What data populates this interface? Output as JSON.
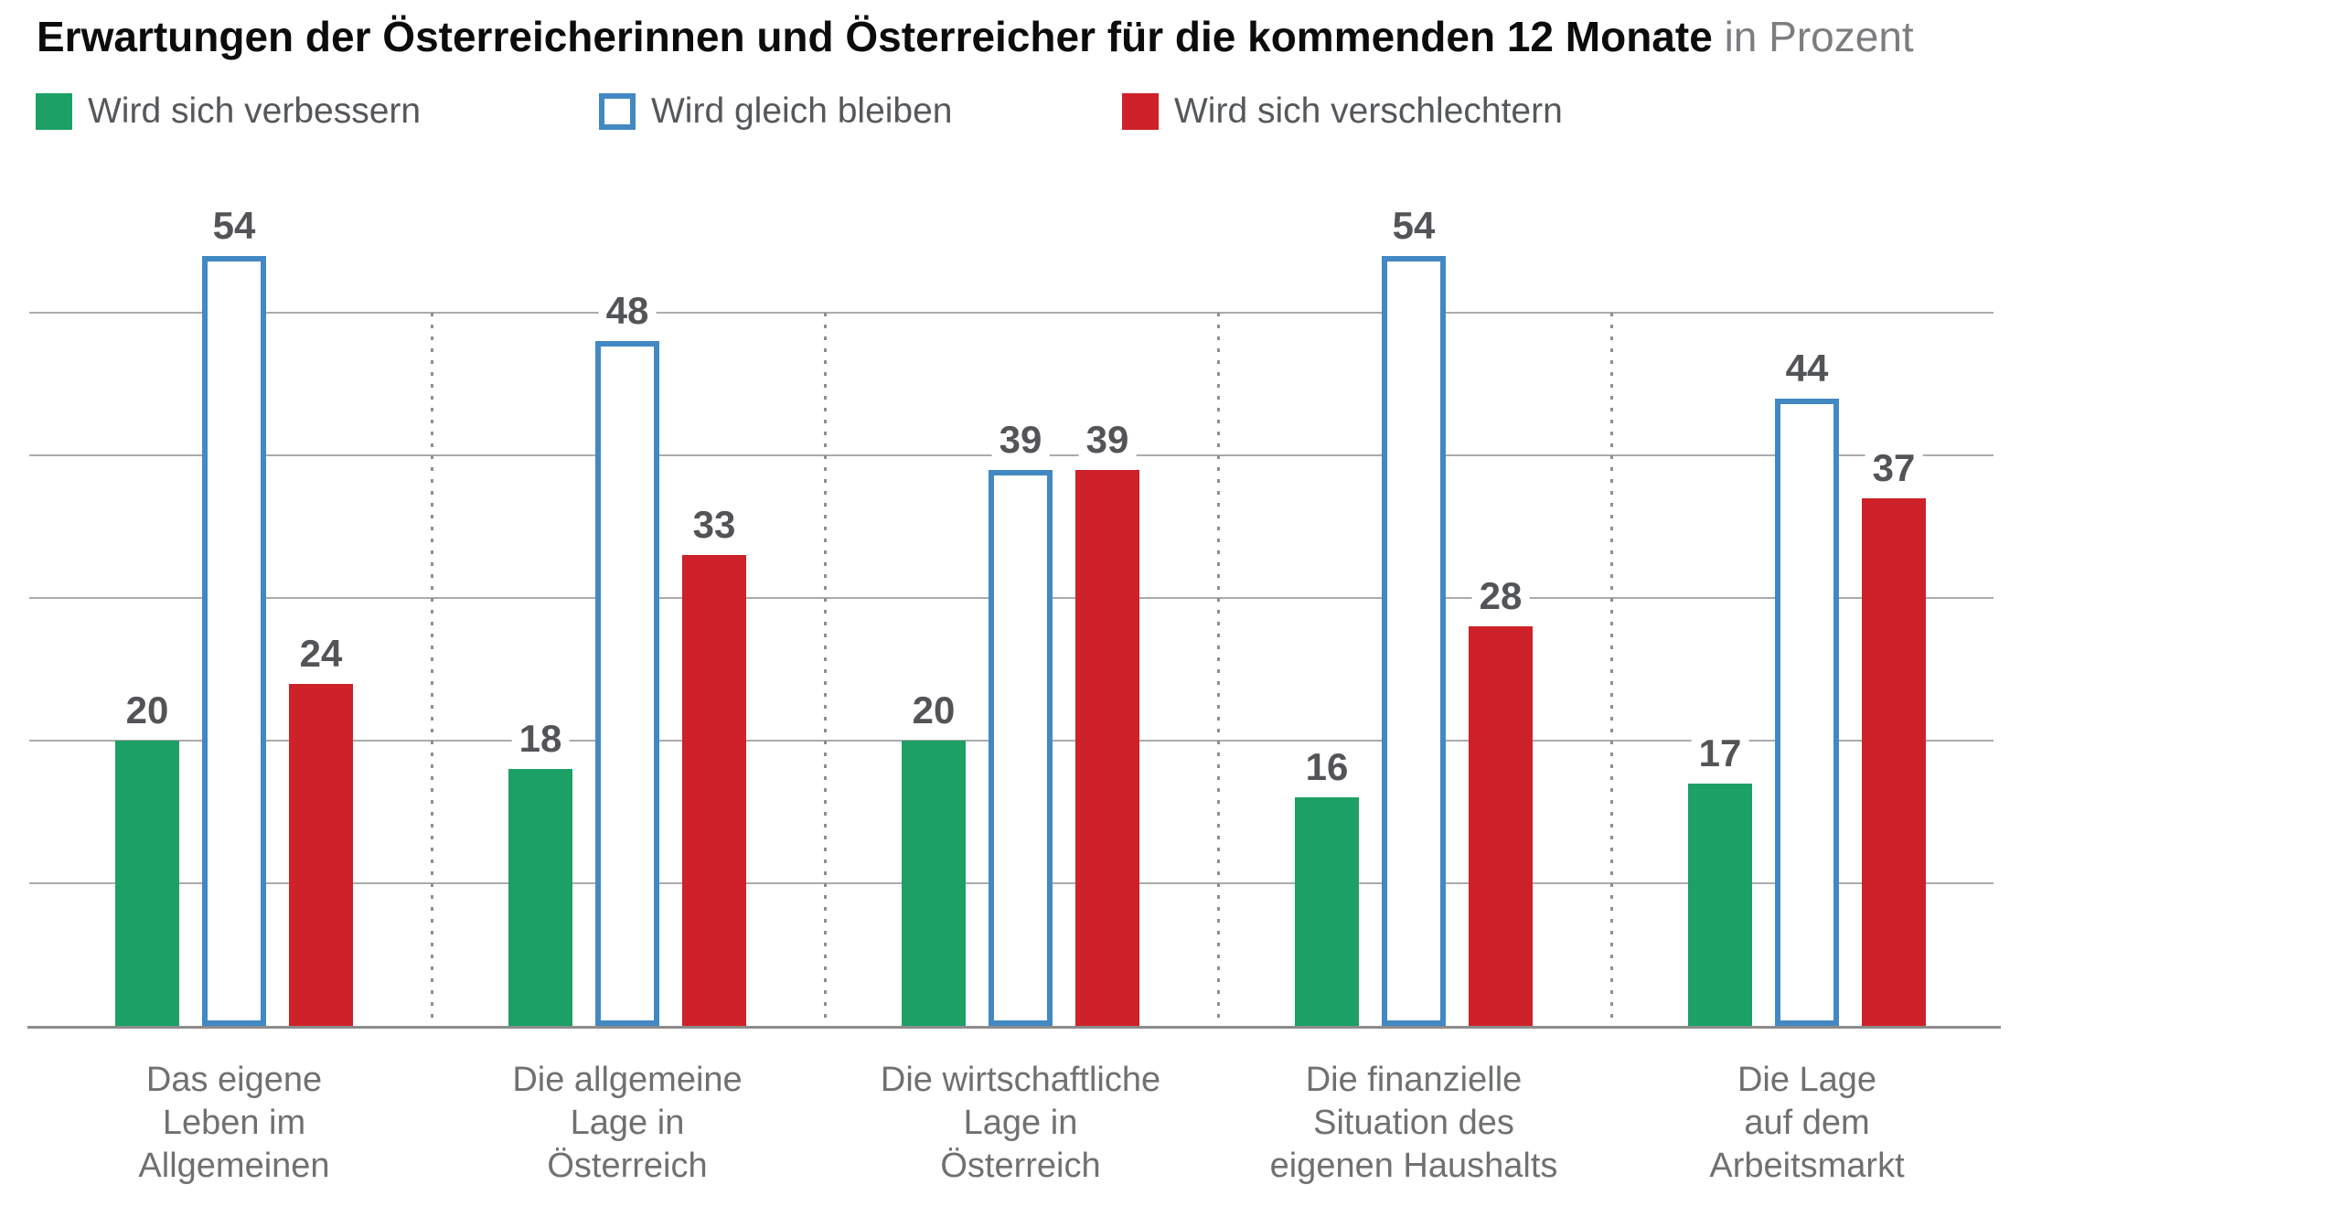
{
  "title": {
    "main": "Erwartungen der Österreicherinnen und Österreicher für die kommenden 12 Monate",
    "suffix": "in Prozent"
  },
  "legend": [
    {
      "label": "Wird sich verbessern",
      "color": "#1da065",
      "style": "filled"
    },
    {
      "label": "Wird gleich bleiben",
      "color": "#4289c4",
      "style": "outlined"
    },
    {
      "label": "Wird sich verschlechtern",
      "color": "#ce2129",
      "style": "filled"
    }
  ],
  "colors": {
    "improve_green": "#1da065",
    "stay_blue_outline": "#4289c4",
    "worsen_red": "#ce2129",
    "gridline_gray": "#ababab",
    "baseline_gray": "#8c8c8c",
    "separator_gray": "#8f8f8f",
    "value_label_gray": "#525457",
    "category_label_gray": "#6f7072",
    "title_black": "#0c0c0c",
    "suffix_gray": "#7b7d80"
  },
  "chart_data": {
    "type": "bar",
    "title": "Erwartungen der Österreicherinnen und Österreicher für die kommenden 12 Monate",
    "subtitle": "in Prozent",
    "categories": [
      "Das eigene\nLeben im\nAllgemeinen",
      "Die allgemeine\nLage in\nÖsterreich",
      "Die wirtschaftliche\nLage in\nÖsterreich",
      "Die finanzielle\nSituation des\neigenen Haushalts",
      "Die Lage\nauf dem\nArbeitsmarkt"
    ],
    "series": [
      {
        "name": "Wird sich verbessern",
        "values": [
          20,
          18,
          20,
          16,
          17
        ]
      },
      {
        "name": "Wird gleich bleiben",
        "values": [
          54,
          48,
          39,
          54,
          44
        ]
      },
      {
        "name": "Wird sich verschlechtern",
        "values": [
          24,
          33,
          39,
          28,
          37
        ]
      }
    ],
    "xlabel": "",
    "ylabel": "Prozent",
    "ylim": [
      0,
      60
    ],
    "gridlines_at": [
      10,
      20,
      30,
      40,
      50
    ],
    "grid": "horizontal gray lines, dotted vertical separators between category groups, no y-axis tick labels",
    "legend_position": "top-left row",
    "value_labels": "above each bar"
  }
}
